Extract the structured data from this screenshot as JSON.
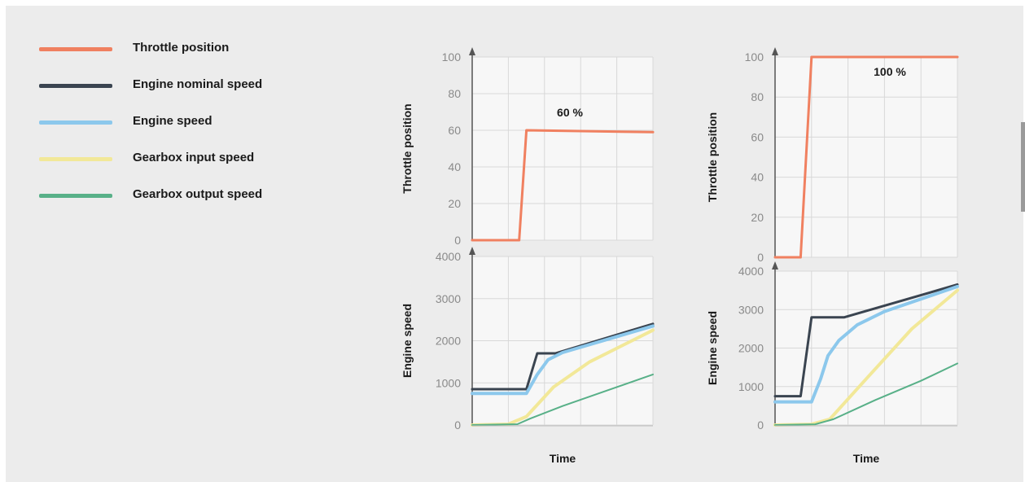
{
  "legend": [
    {
      "label": "Throttle position",
      "color": "#f08060"
    },
    {
      "label": "Engine nominal speed",
      "color": "#3a4450"
    },
    {
      "label": "Engine speed",
      "color": "#8cc8ec"
    },
    {
      "label": "Gearbox input speed",
      "color": "#f2e898"
    },
    {
      "label": "Gearbox output speed",
      "color": "#58b088"
    }
  ],
  "chart_data": [
    {
      "type": "line",
      "annotation": "60 %",
      "xlabel": "Time",
      "top": {
        "ylabel": "Throttle position",
        "ylim": [
          0,
          100
        ],
        "yticks": [
          "0",
          "20",
          "40",
          "60",
          "80",
          "100"
        ],
        "series": [
          {
            "name": "Throttle position",
            "points": [
              [
                0,
                0
              ],
              [
                0.26,
                0
              ],
              [
                0.3,
                60
              ],
              [
                1,
                59
              ]
            ]
          }
        ]
      },
      "bottom": {
        "ylabel": "Engine speed",
        "ylim": [
          0,
          4000
        ],
        "yticks": [
          "0",
          "1000",
          "2000",
          "3000",
          "4000"
        ],
        "series": [
          {
            "name": "Engine nominal speed",
            "points": [
              [
                0,
                850
              ],
              [
                0.3,
                850
              ],
              [
                0.36,
                1700
              ],
              [
                0.46,
                1700
              ],
              [
                1,
                2400
              ]
            ]
          },
          {
            "name": "Engine speed",
            "points": [
              [
                0,
                750
              ],
              [
                0.3,
                750
              ],
              [
                0.36,
                1200
              ],
              [
                0.42,
                1550
              ],
              [
                0.5,
                1720
              ],
              [
                1,
                2350
              ]
            ]
          },
          {
            "name": "Gearbox input speed",
            "points": [
              [
                0,
                0
              ],
              [
                0.2,
                20
              ],
              [
                0.3,
                200
              ],
              [
                0.45,
                900
              ],
              [
                0.65,
                1500
              ],
              [
                1,
                2250
              ]
            ]
          },
          {
            "name": "Gearbox output speed",
            "points": [
              [
                0,
                0
              ],
              [
                0.25,
                20
              ],
              [
                0.32,
                150
              ],
              [
                0.5,
                450
              ],
              [
                0.7,
                750
              ],
              [
                1,
                1200
              ]
            ]
          }
        ]
      }
    },
    {
      "type": "line",
      "annotation": "100 %",
      "xlabel": "Time",
      "top": {
        "ylabel": "Throttle position",
        "ylim": [
          0,
          100
        ],
        "yticks": [
          "0",
          "20",
          "40",
          "60",
          "80",
          "100"
        ],
        "series": [
          {
            "name": "Throttle position",
            "points": [
              [
                0,
                0
              ],
              [
                0.14,
                0
              ],
              [
                0.2,
                100
              ],
              [
                1,
                100
              ]
            ]
          }
        ]
      },
      "bottom": {
        "ylabel": "Engine speed",
        "ylim": [
          0,
          4000
        ],
        "yticks": [
          "0",
          "1000",
          "2000",
          "3000",
          "4000"
        ],
        "series": [
          {
            "name": "Engine nominal speed",
            "points": [
              [
                0,
                750
              ],
              [
                0.14,
                750
              ],
              [
                0.2,
                2800
              ],
              [
                0.38,
                2800
              ],
              [
                1,
                3650
              ]
            ]
          },
          {
            "name": "Engine speed",
            "points": [
              [
                0,
                600
              ],
              [
                0.2,
                600
              ],
              [
                0.25,
                1200
              ],
              [
                0.29,
                1800
              ],
              [
                0.35,
                2200
              ],
              [
                0.45,
                2600
              ],
              [
                0.6,
                2950
              ],
              [
                1,
                3600
              ]
            ]
          },
          {
            "name": "Gearbox input speed",
            "points": [
              [
                0,
                0
              ],
              [
                0.2,
                20
              ],
              [
                0.3,
                150
              ],
              [
                0.5,
                1200
              ],
              [
                0.75,
                2500
              ],
              [
                1,
                3500
              ]
            ]
          },
          {
            "name": "Gearbox output speed",
            "points": [
              [
                0,
                0
              ],
              [
                0.22,
                20
              ],
              [
                0.32,
                150
              ],
              [
                0.55,
                650
              ],
              [
                0.8,
                1150
              ],
              [
                1,
                1600
              ]
            ]
          }
        ]
      }
    }
  ]
}
